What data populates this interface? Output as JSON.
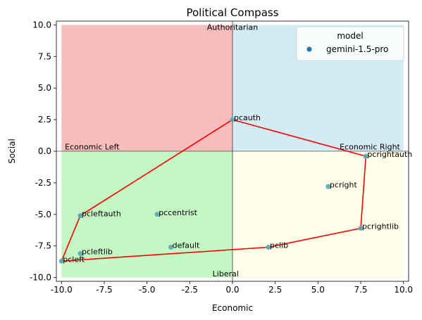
{
  "chart_data": {
    "type": "scatter",
    "title": "Political Compass",
    "xlabel": "Economic",
    "ylabel": "Social",
    "xlim": [
      -10.3,
      10.3
    ],
    "ylim": [
      -10.3,
      10.3
    ],
    "x_ticks": [
      -10.0,
      -7.5,
      -5.0,
      -2.5,
      0.0,
      2.5,
      5.0,
      7.5,
      10.0
    ],
    "y_ticks": [
      -10.0,
      -7.5,
      -5.0,
      -2.5,
      0.0,
      2.5,
      5.0,
      7.5,
      10.0
    ],
    "grid": false,
    "quadrants": [
      {
        "name": "top-left",
        "x": [
          -10,
          0
        ],
        "y": [
          0,
          10
        ],
        "color": "#f7bcbc"
      },
      {
        "name": "top-right",
        "x": [
          0,
          10
        ],
        "y": [
          0,
          10
        ],
        "color": "#d3ebf2"
      },
      {
        "name": "bottom-left",
        "x": [
          -10,
          0
        ],
        "y": [
          -10,
          0
        ],
        "color": "#c5f7c5"
      },
      {
        "name": "bottom-right",
        "x": [
          0,
          10
        ],
        "y": [
          -10,
          0
        ],
        "color": "#ffffea"
      }
    ],
    "quadrant_labels": [
      {
        "text": "Authoritarian",
        "x": 0,
        "y": 9.6,
        "anchor": "middle"
      },
      {
        "text": "Economic Left",
        "x": -9.8,
        "y": 0.15,
        "anchor": "start"
      },
      {
        "text": "Economic Right",
        "x": 9.8,
        "y": 0.15,
        "anchor": "end"
      },
      {
        "text": "Liberal",
        "x": -0.4,
        "y": -9.9,
        "anchor": "middle"
      }
    ],
    "points": [
      {
        "label": "pcauth",
        "x": 0.0,
        "y": 2.5
      },
      {
        "label": "pcrightauth",
        "x": 7.8,
        "y": -0.4
      },
      {
        "label": "pcright",
        "x": 5.6,
        "y": -2.8
      },
      {
        "label": "pcrightlib",
        "x": 7.5,
        "y": -6.1
      },
      {
        "label": "pclib",
        "x": 2.1,
        "y": -7.6
      },
      {
        "label": "pcleft",
        "x": -10.0,
        "y": -8.7
      },
      {
        "label": "pcleftlib",
        "x": -8.9,
        "y": -8.1
      },
      {
        "label": "default",
        "x": -3.6,
        "y": -7.6
      },
      {
        "label": "pccentrist",
        "x": -4.4,
        "y": -5.0
      },
      {
        "label": "pcleftauth",
        "x": -8.9,
        "y": -5.1
      }
    ],
    "hull": [
      [
        0.0,
        2.5
      ],
      [
        7.8,
        -0.4
      ],
      [
        7.5,
        -6.1
      ],
      [
        2.1,
        -7.6
      ],
      [
        -10.0,
        -8.7
      ],
      [
        -8.9,
        -5.1
      ],
      [
        0.0,
        2.5
      ]
    ],
    "hull_color": "#ff0000",
    "point_color": "#5aa7b3",
    "legend": {
      "title": "model",
      "placement": "top-right",
      "entries": [
        {
          "name": "gemini-1.5-pro",
          "color": "#1f77b4"
        }
      ]
    }
  }
}
